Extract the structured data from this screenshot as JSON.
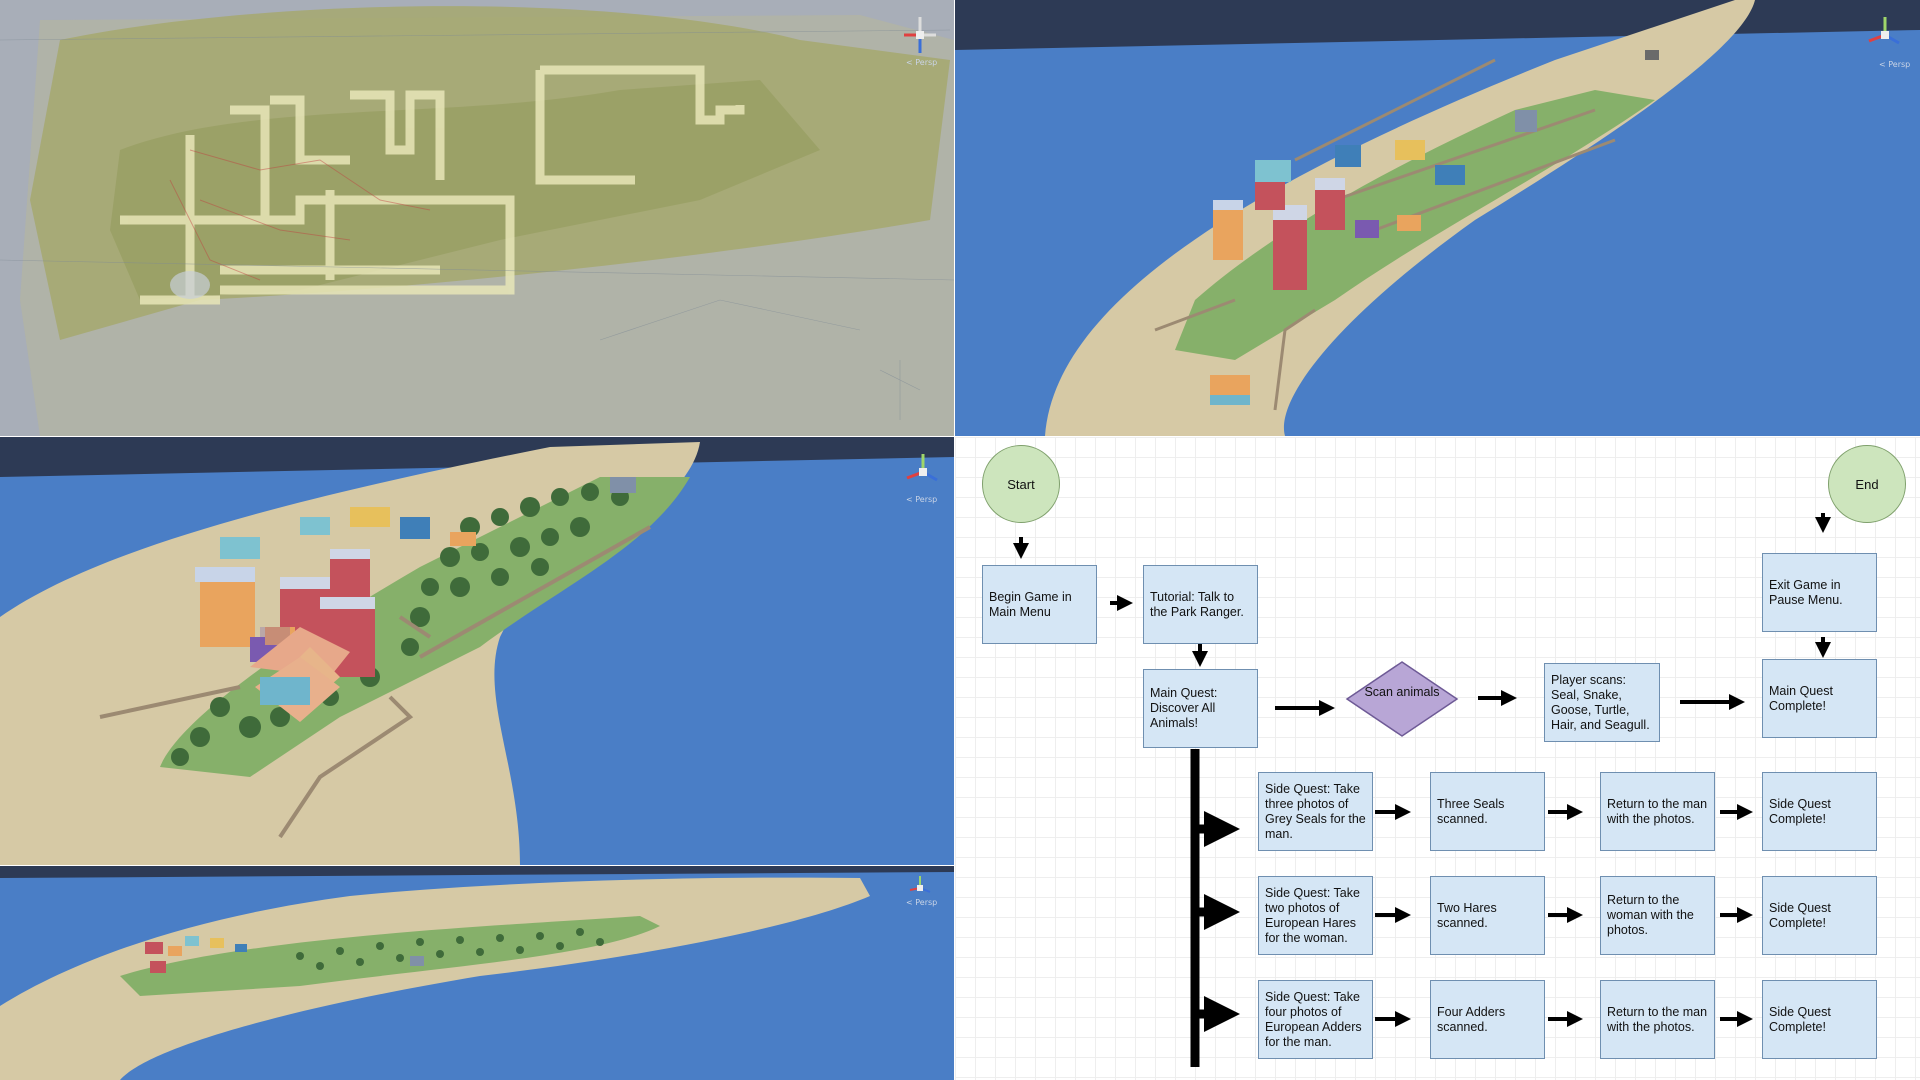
{
  "panels": {
    "top_left": {
      "persp_label": "< Persp"
    },
    "top_right": {
      "persp_label": "< Persp"
    },
    "middle_left": {
      "persp_label": "< Persp"
    },
    "bottom_left": {
      "persp_label": "< Persp"
    }
  },
  "colors": {
    "water": "#3f74c2",
    "sand": "#d9c8a3",
    "grass": "#86b06a",
    "map_overlay": "#a9b07a",
    "node_fill": "#d5e6f5",
    "start_end_fill": "#cde5bd",
    "diamond_fill": "#b8a6d6"
  },
  "flowchart": {
    "start": "Start",
    "end": "End",
    "begin": "Begin Game in Main Menu",
    "tutorial": "Tutorial: Talk to the Park Ranger.",
    "main_quest": "Main Quest: Discover All Animals!",
    "scan": "Scan animals",
    "player_scans": "Player scans: Seal, Snake, Goose, Turtle, Hair, and Seagull.",
    "main_complete": "Main Quest Complete!",
    "exit_game": "Exit Game in Pause Menu.",
    "side_quests": [
      {
        "quest": "Side Quest: Take three photos of Grey Seals for the man.",
        "scanned": "Three Seals scanned.",
        "return": "Return to the man with the photos.",
        "complete": "Side Quest Complete!"
      },
      {
        "quest": "Side Quest: Take two photos of European Hares for the woman.",
        "scanned": "Two Hares scanned.",
        "return": "Return to the woman with the photos.",
        "complete": "Side Quest Complete!"
      },
      {
        "quest": "Side Quest: Take four photos of European Adders for the man.",
        "scanned": "Four Adders scanned.",
        "return": "Return to the man with the photos.",
        "complete": "Side Quest Complete!"
      }
    ]
  }
}
